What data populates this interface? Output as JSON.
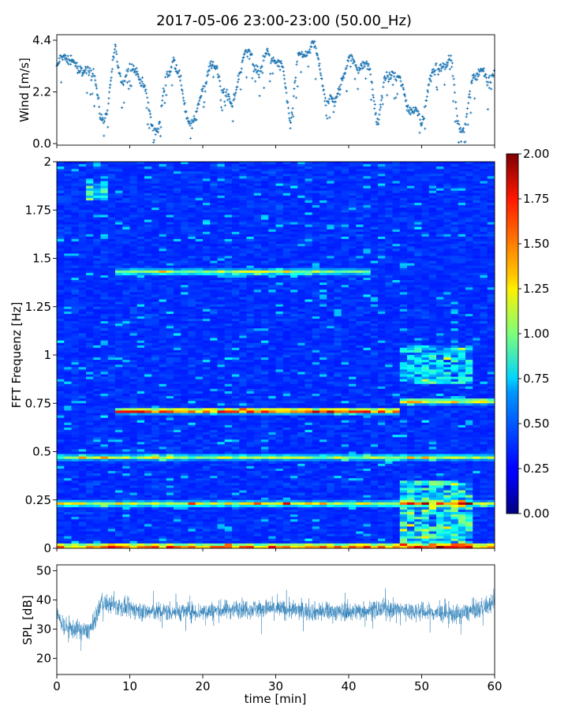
{
  "figure": {
    "title": "2017-05-06 23:00-23:00 (50.00_Hz)"
  },
  "chart_data": [
    {
      "type": "scatter",
      "ylabel": "Wind [m/s]",
      "xlim": [
        0,
        60
      ],
      "ylim": [
        0,
        4.4
      ],
      "yticks": [
        "0.0",
        "2.2",
        "4.4"
      ],
      "color": "#1f77b4",
      "marker": "+",
      "series": [
        {
          "x_range": [
            0,
            60
          ],
          "profile_minute_values": [
            [
              0,
              3.2
            ],
            [
              1,
              3.6
            ],
            [
              2,
              3.8
            ],
            [
              3,
              2.8
            ],
            [
              4,
              3.4
            ],
            [
              5,
              2.9
            ],
            [
              6,
              1.2
            ],
            [
              7,
              1.5
            ],
            [
              8,
              4.0
            ],
            [
              9,
              2.6
            ],
            [
              10,
              3.1
            ],
            [
              11,
              3.3
            ],
            [
              12,
              2.2
            ],
            [
              13,
              0.9
            ],
            [
              14,
              0.6
            ],
            [
              15,
              2.8
            ],
            [
              16,
              3.7
            ],
            [
              17,
              2.4
            ],
            [
              18,
              1.1
            ],
            [
              19,
              0.8
            ],
            [
              20,
              2.5
            ],
            [
              21,
              3.3
            ],
            [
              22,
              3.0
            ],
            [
              23,
              2.4
            ],
            [
              24,
              1.3
            ],
            [
              25,
              3.2
            ],
            [
              26,
              3.9
            ],
            [
              27,
              3.5
            ],
            [
              28,
              3.1
            ],
            [
              29,
              3.9
            ],
            [
              30,
              3.6
            ],
            [
              31,
              3.0
            ],
            [
              32,
              1.0
            ],
            [
              33,
              3.4
            ],
            [
              34,
              3.9
            ],
            [
              35,
              4.3
            ],
            [
              36,
              3.2
            ],
            [
              37,
              2.0
            ],
            [
              38,
              1.5
            ],
            [
              39,
              2.9
            ],
            [
              40,
              3.4
            ],
            [
              41,
              3.5
            ],
            [
              42,
              3.3
            ],
            [
              43,
              3.0
            ],
            [
              44,
              0.9
            ],
            [
              45,
              2.6
            ],
            [
              46,
              3.2
            ],
            [
              47,
              2.5
            ],
            [
              48,
              1.8
            ],
            [
              49,
              1.4
            ],
            [
              50,
              0.8
            ],
            [
              51,
              2.7
            ],
            [
              52,
              3.0
            ],
            [
              53,
              3.6
            ],
            [
              54,
              3.4
            ],
            [
              55,
              1.0
            ],
            [
              56,
              0.6
            ],
            [
              57,
              2.9
            ],
            [
              58,
              3.3
            ],
            [
              59,
              2.4
            ],
            [
              60,
              3.3
            ]
          ]
        }
      ]
    },
    {
      "type": "heatmap",
      "ylabel": "FFT Frequenz [Hz]",
      "xlim": [
        0,
        60
      ],
      "ylim": [
        0,
        2
      ],
      "yticks": [
        "0",
        "0.25",
        "0.5",
        "0.75",
        "1",
        "1.25",
        "1.5",
        "1.75",
        "2"
      ],
      "colormap": "jet",
      "clim": [
        0,
        2
      ],
      "colorbar_ticks": [
        "0.00",
        "0.25",
        "0.50",
        "0.75",
        "1.00",
        "1.25",
        "1.50",
        "1.75",
        "2.00"
      ],
      "background_level": 0.3,
      "bands": [
        {
          "freq": 0.01,
          "level": 1.3,
          "x_range": [
            0,
            60
          ]
        },
        {
          "freq": 0.23,
          "level": 0.9,
          "x_range": [
            0,
            60
          ]
        },
        {
          "freq": 0.47,
          "level": 0.75,
          "x_range": [
            0,
            60
          ]
        },
        {
          "freq": 0.71,
          "level": 1.4,
          "x_range": [
            8,
            47
          ]
        },
        {
          "freq": 0.76,
          "level": 1.0,
          "x_range": [
            47,
            60
          ]
        },
        {
          "freq": 1.43,
          "level": 0.8,
          "x_range": [
            8,
            43
          ]
        }
      ],
      "bright_regions": [
        {
          "x_range": [
            47,
            57
          ],
          "freq_range": [
            0,
            0.35
          ],
          "level": 0.9
        },
        {
          "x_range": [
            47,
            57
          ],
          "freq_range": [
            0.85,
            1.05
          ],
          "level": 0.7
        },
        {
          "x_range": [
            4,
            7
          ],
          "freq_range": [
            1.8,
            1.9
          ],
          "level": 0.8
        }
      ]
    },
    {
      "type": "line",
      "ylabel": "SPL [dB]",
      "xlabel": "time [min]",
      "xlim": [
        0,
        60
      ],
      "ylim": [
        14.5,
        52
      ],
      "yticks": [
        "20",
        "30",
        "40",
        "50"
      ],
      "xticks": [
        "0",
        "10",
        "20",
        "30",
        "40",
        "50",
        "60"
      ],
      "color": "#1f77b4",
      "series": [
        {
          "mean_profile": [
            [
              0,
              35
            ],
            [
              1,
              31
            ],
            [
              2,
              30
            ],
            [
              3,
              30
            ],
            [
              4,
              29
            ],
            [
              5,
              31
            ],
            [
              6,
              39
            ],
            [
              8,
              38
            ],
            [
              10,
              37
            ],
            [
              12,
              36
            ],
            [
              15,
              36
            ],
            [
              20,
              36
            ],
            [
              25,
              37
            ],
            [
              30,
              37
            ],
            [
              35,
              36
            ],
            [
              40,
              36
            ],
            [
              45,
              37
            ],
            [
              50,
              36
            ],
            [
              55,
              35
            ],
            [
              58,
              37
            ],
            [
              60,
              39
            ]
          ],
          "spread_dB": 6
        }
      ]
    }
  ]
}
